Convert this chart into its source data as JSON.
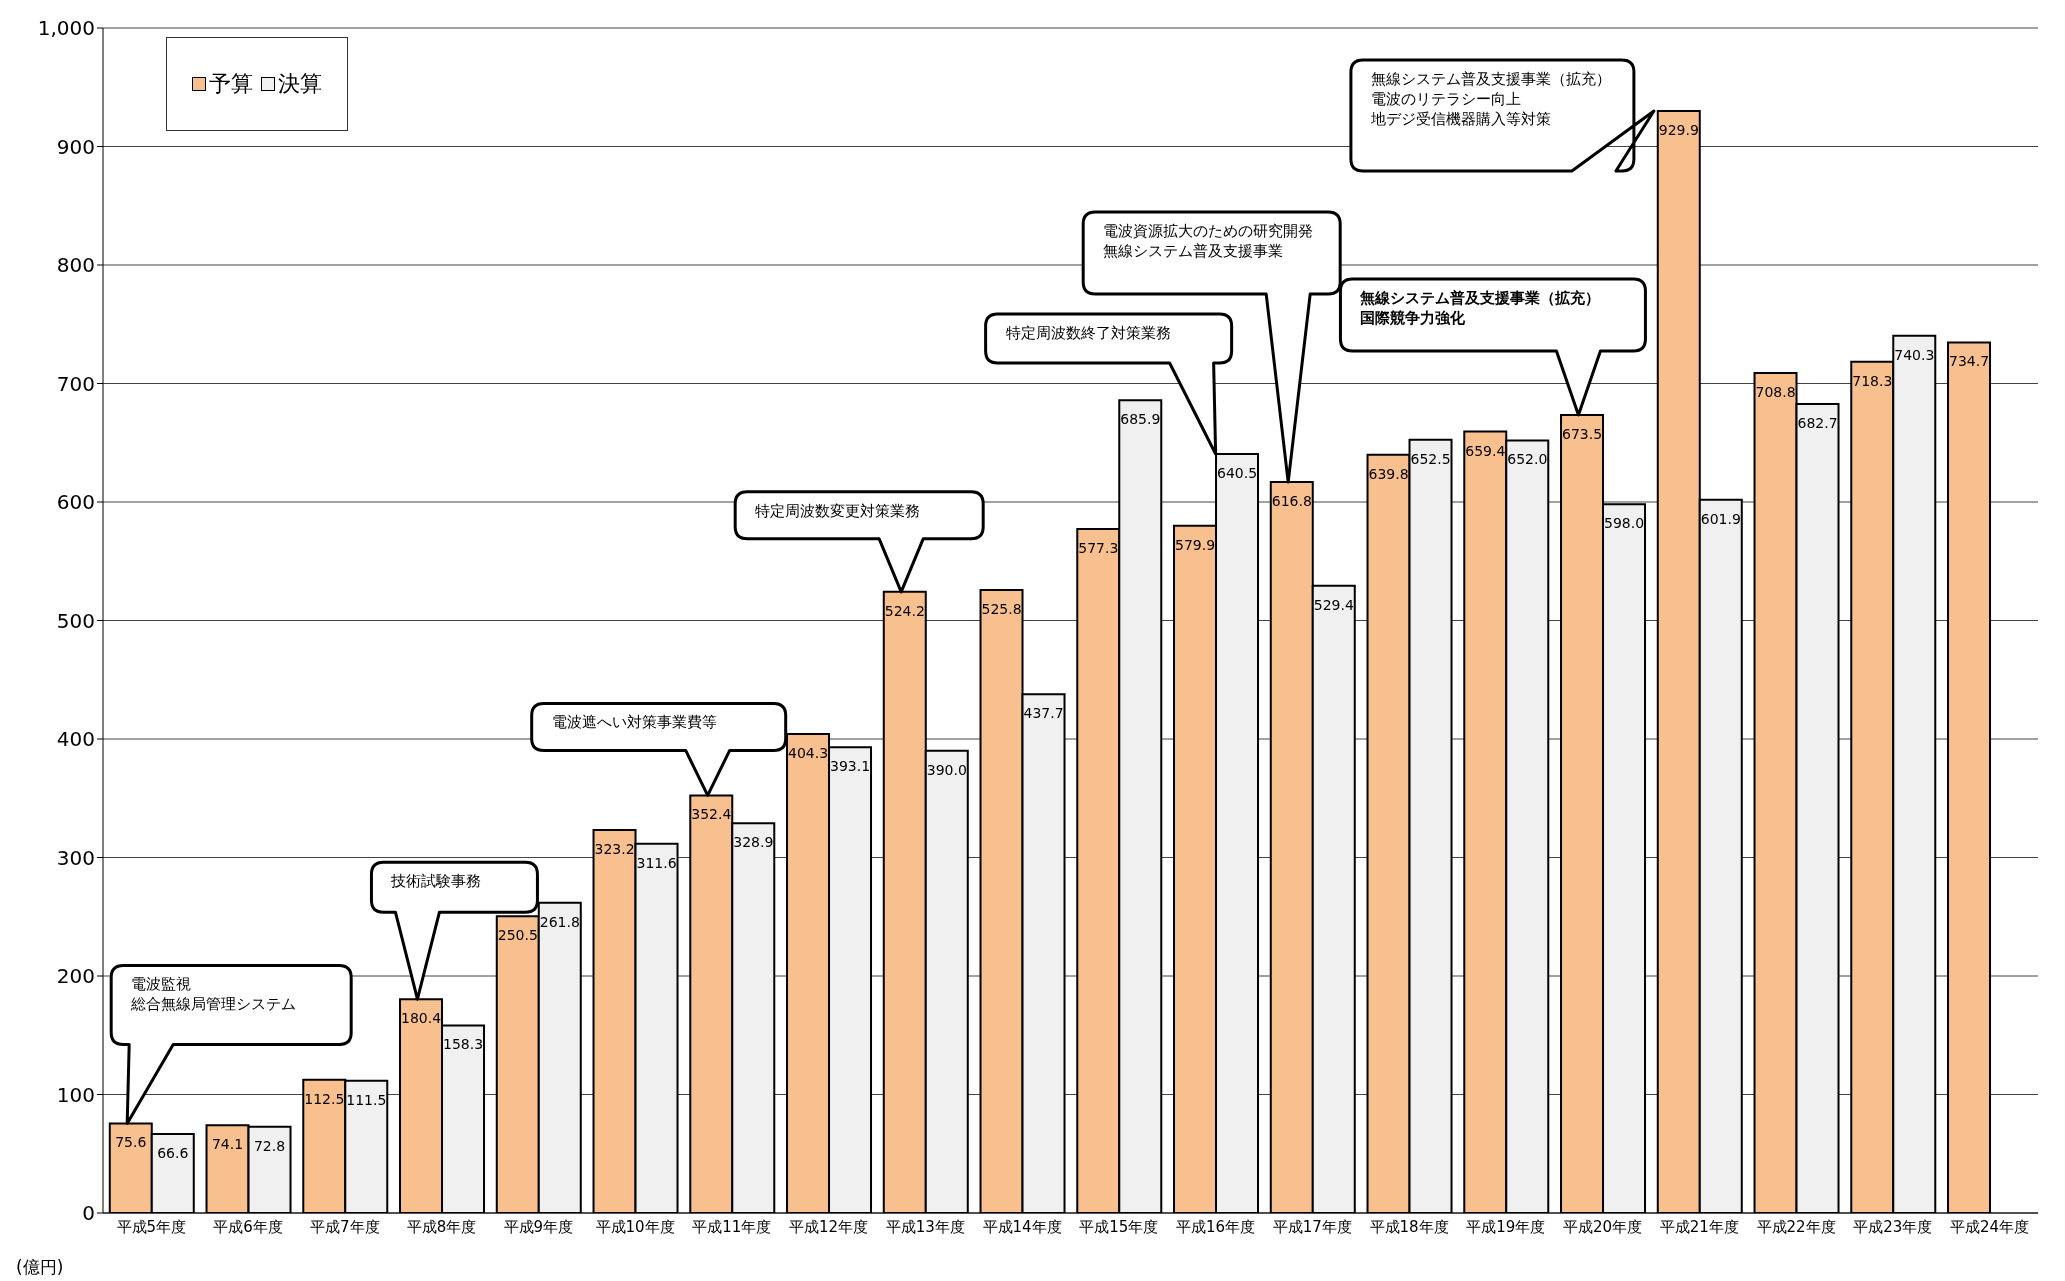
{
  "chart_data": {
    "type": "bar",
    "ylabel": "(億円)",
    "legend": "top left",
    "grid": "y",
    "categories": [
      "平成5年度",
      "平成6年度",
      "平成7年度",
      "平成8年度",
      "平成9年度",
      "平成10年度",
      "平成11年度",
      "平成12年度",
      "平成13年度",
      "平成14年度",
      "平成15年度",
      "平成16年度",
      "平成17年度",
      "平成18年度",
      "平成19年度",
      "平成20年度",
      "平成21年度",
      "平成22年度",
      "平成23年度",
      "平成24年度"
    ],
    "ylim": [
      0,
      1000
    ],
    "yticks": [
      0,
      100,
      200,
      300,
      400,
      500,
      600,
      700,
      800,
      900,
      {
        "value": 1000,
        "label": "1,000"
      }
    ],
    "series": [
      {
        "name": "予算",
        "color": "#f9c08f",
        "values": [
          75.6,
          74.1,
          112.5,
          180.4,
          250.5,
          323.2,
          352.4,
          404.3,
          524.2,
          525.8,
          577.3,
          579.9,
          616.8,
          639.8,
          659.4,
          673.5,
          929.9,
          708.8,
          718.3,
          734.7
        ],
        "value_labels": [
          "75.6",
          "74.1",
          "112.5",
          "180.4",
          "250.5",
          "323.2",
          "352.4",
          "404.3",
          "524.2",
          "525.8",
          "577.3",
          "579.9",
          "616.8",
          "639.8",
          "659.4",
          "673.5",
          "929.9",
          "708.8",
          "718.3",
          "734.7"
        ]
      },
      {
        "name": "決算",
        "color": "#f0f0f0",
        "values": [
          66.6,
          72.8,
          111.5,
          158.3,
          261.8,
          311.6,
          328.9,
          393.1,
          390.0,
          437.7,
          685.9,
          640.5,
          529.4,
          652.5,
          652.0,
          598.0,
          601.9,
          682.7,
          740.3,
          null
        ],
        "value_labels": [
          "66.6",
          "72.8",
          "111.5",
          "158.3",
          "261.8",
          "311.6",
          "328.9",
          "393.1",
          "390.0",
          "437.7",
          "685.9",
          "640.5",
          "529.4",
          "652.5",
          "652.0",
          "598.0",
          "601.9",
          "682.7",
          "740.3",
          null
        ]
      }
    ],
    "annotations": [
      "電波監視総合無線局管理システム",
      "技術試験事務",
      "電波遮へい対策事業費等",
      "特定周波数変更対策業務",
      "特定周波数終了対策業務",
      "電波資源拡大のための研究開発無線システム普及支援事業",
      "無線システム普及支援事業（拡充）国際競争力強化",
      "無線システム普及支援事業（拡充）電波のリテラシー向上地デジ受信機器購入等対策"
    ]
  }
}
